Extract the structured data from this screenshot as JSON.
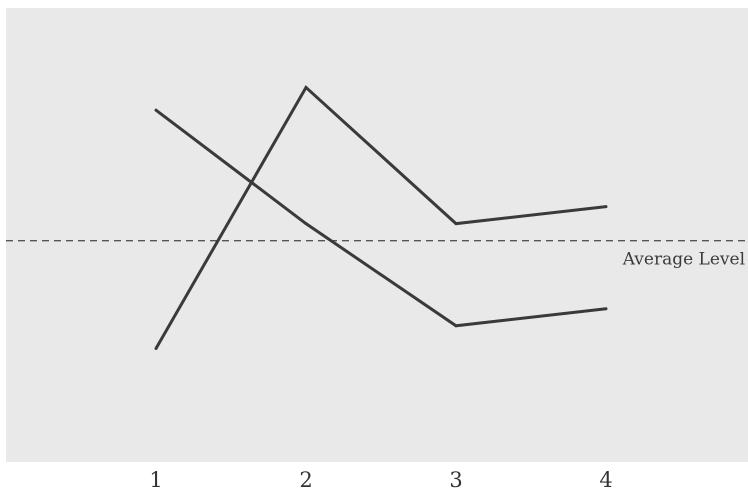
{
  "chart_data": {
    "type": "line",
    "x": [
      1,
      2,
      3,
      4
    ],
    "series": [
      {
        "values": [
          7.2,
          5.2,
          3.4,
          3.7
        ]
      },
      {
        "values": [
          3.0,
          7.6,
          5.2,
          5.5
        ]
      }
    ],
    "reference_line": {
      "value": 4.9,
      "label": "Average Level",
      "style": "dashed"
    },
    "xlim": [
      0.0,
      4.95
    ],
    "ylim": [
      1.0,
      9.0
    ],
    "grid": false,
    "colors": {
      "plot_background": "#e9e9e9",
      "line": "#3a3a3a",
      "page_background": "#ffffff"
    }
  }
}
